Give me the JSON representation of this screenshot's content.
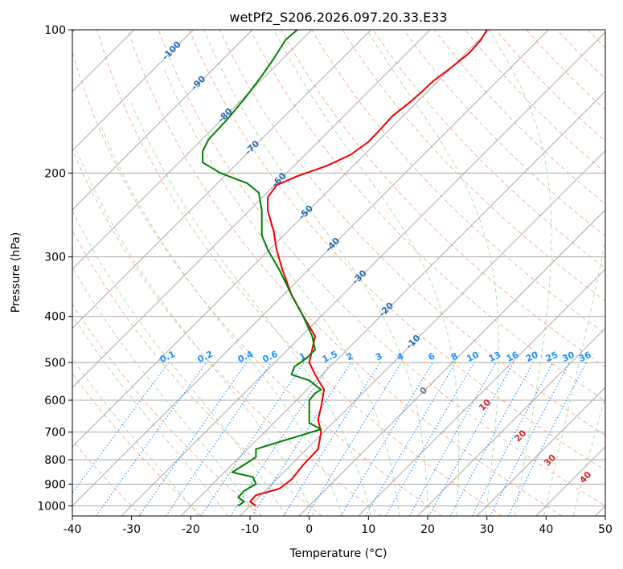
{
  "chart_data": {
    "type": "line",
    "title": "wetPf2_S206.2026.097.20.33.E33",
    "xlabel": "Temperature (°C)",
    "ylabel": "Pressure (hPa)",
    "xlim": [
      -40,
      50
    ],
    "ylim": [
      1050,
      100
    ],
    "x_ticks": [
      "-40",
      "-30",
      "-20",
      "-10",
      "0",
      "10",
      "20",
      "30",
      "40",
      "50"
    ],
    "y_ticks": [
      "100",
      "200",
      "300",
      "400",
      "500",
      "600",
      "700",
      "800",
      "900",
      "1000"
    ],
    "skew": "skew-T log-p diagram",
    "series": [
      {
        "name": "Temperature",
        "color": "#ee0000",
        "points": [
          [
            -9,
            1000
          ],
          [
            -10,
            980
          ],
          [
            -9,
            950
          ],
          [
            -5,
            920
          ],
          [
            -3,
            880
          ],
          [
            -1,
            820
          ],
          [
            1.5,
            760
          ],
          [
            2,
            700
          ],
          [
            1.5,
            660
          ],
          [
            2,
            620
          ],
          [
            2.5,
            570
          ],
          [
            1,
            530
          ],
          [
            0,
            500
          ],
          [
            0.5,
            470
          ],
          [
            1,
            440
          ],
          [
            -1,
            400
          ],
          [
            -3,
            360
          ],
          [
            -4.5,
            320
          ],
          [
            -5.5,
            290
          ],
          [
            -6,
            265
          ],
          [
            -7,
            240
          ],
          [
            -7,
            225
          ],
          [
            -5.5,
            212
          ],
          [
            -2,
            203
          ],
          [
            3,
            193
          ],
          [
            7,
            183
          ],
          [
            10,
            172
          ],
          [
            12,
            162
          ],
          [
            14,
            152
          ],
          [
            17,
            142
          ],
          [
            19,
            135
          ],
          [
            21,
            128
          ],
          [
            24,
            120
          ],
          [
            27,
            112
          ],
          [
            29,
            105
          ],
          [
            30,
            100
          ]
        ]
      },
      {
        "name": "Dew point",
        "color": "#008000",
        "points": [
          [
            -12,
            1000
          ],
          [
            -11,
            980
          ],
          [
            -12,
            960
          ],
          [
            -11,
            930
          ],
          [
            -9,
            900
          ],
          [
            -9.5,
            870
          ],
          [
            -13,
            850
          ],
          [
            -11,
            820
          ],
          [
            -9,
            790
          ],
          [
            -9,
            760
          ],
          [
            -6,
            740
          ],
          [
            -2,
            715
          ],
          [
            2,
            690
          ],
          [
            0,
            670
          ],
          [
            0,
            630
          ],
          [
            0,
            600
          ],
          [
            1,
            580
          ],
          [
            2,
            570
          ],
          [
            0,
            545
          ],
          [
            -3,
            530
          ],
          [
            -2.5,
            510
          ],
          [
            -0.5,
            490
          ],
          [
            1,
            470
          ],
          [
            0.5,
            440
          ],
          [
            -1,
            400
          ],
          [
            -3,
            360
          ],
          [
            -5,
            320
          ],
          [
            -7,
            290
          ],
          [
            -8,
            270
          ],
          [
            -8,
            240
          ],
          [
            -8.5,
            220
          ],
          [
            -10.5,
            210
          ],
          [
            -15,
            200
          ],
          [
            -18,
            190
          ],
          [
            -18,
            180
          ],
          [
            -17,
            170
          ],
          [
            -14,
            155
          ],
          [
            -11,
            140
          ],
          [
            -8,
            125
          ],
          [
            -6,
            115
          ],
          [
            -4,
            105
          ],
          [
            -2,
            100
          ]
        ]
      }
    ],
    "isotherm_labels": [
      "-100",
      "-90",
      "-80",
      "-70",
      "-60",
      "-50",
      "-40",
      "-30",
      "-20",
      "-10",
      "0"
    ],
    "moist_adiabat_labels": [
      "10",
      "20",
      "30",
      "40"
    ],
    "mixing_ratio_labels": [
      "0.1",
      "0.2",
      "0.4",
      "0.6",
      "1",
      "1.5",
      "2",
      "3",
      "4",
      "6",
      "8",
      "10",
      "13",
      "16",
      "20",
      "25",
      "30",
      "36"
    ],
    "colors": {
      "temperature": "#ee0000",
      "dewpoint": "#008000",
      "isotherm": "#a8a8a8",
      "dry_adiabat": "#f4a582",
      "moist_adiabat": "#a6d8a6",
      "mixing_ratio": "#1e90ff",
      "isotherm_label": "#1f6fb5",
      "moist_label": "#d62728"
    }
  }
}
